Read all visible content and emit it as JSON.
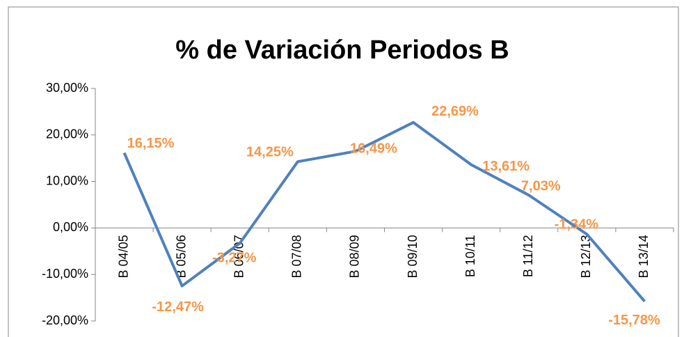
{
  "chart_data": {
    "type": "line",
    "title": "% de Variación Periodos B",
    "categories": [
      "B 04/05",
      "B 05/06",
      "B 06/07",
      "B 07/08",
      "B 08/09",
      "B 09/10",
      "B 10/11",
      "B 11/12",
      "B 12/13",
      "B 13/14"
    ],
    "series": [
      {
        "color": "#4f81bd",
        "values": [
          16.15,
          -12.47,
          -3.27,
          14.25,
          16.49,
          22.69,
          13.61,
          7.03,
          -1.34,
          -15.78
        ],
        "value_labels": [
          "16,15%",
          "-12,47%",
          "-3,27%",
          "14,25%",
          "16,49%",
          "22,69%",
          "13,61%",
          "7,03%",
          "-1,34%",
          "-15,78%"
        ],
        "label_color": "#f79646"
      }
    ],
    "ylim": [
      -20,
      30
    ],
    "yticks": [
      {
        "value": -20,
        "label": "-20,00%"
      },
      {
        "value": -10,
        "label": "-10,00%"
      },
      {
        "value": 0,
        "label": "0,00%"
      },
      {
        "value": 10,
        "label": "10,00%"
      },
      {
        "value": 20,
        "label": "20,00%"
      },
      {
        "value": 30,
        "label": "30,00%"
      }
    ],
    "grid": false
  }
}
